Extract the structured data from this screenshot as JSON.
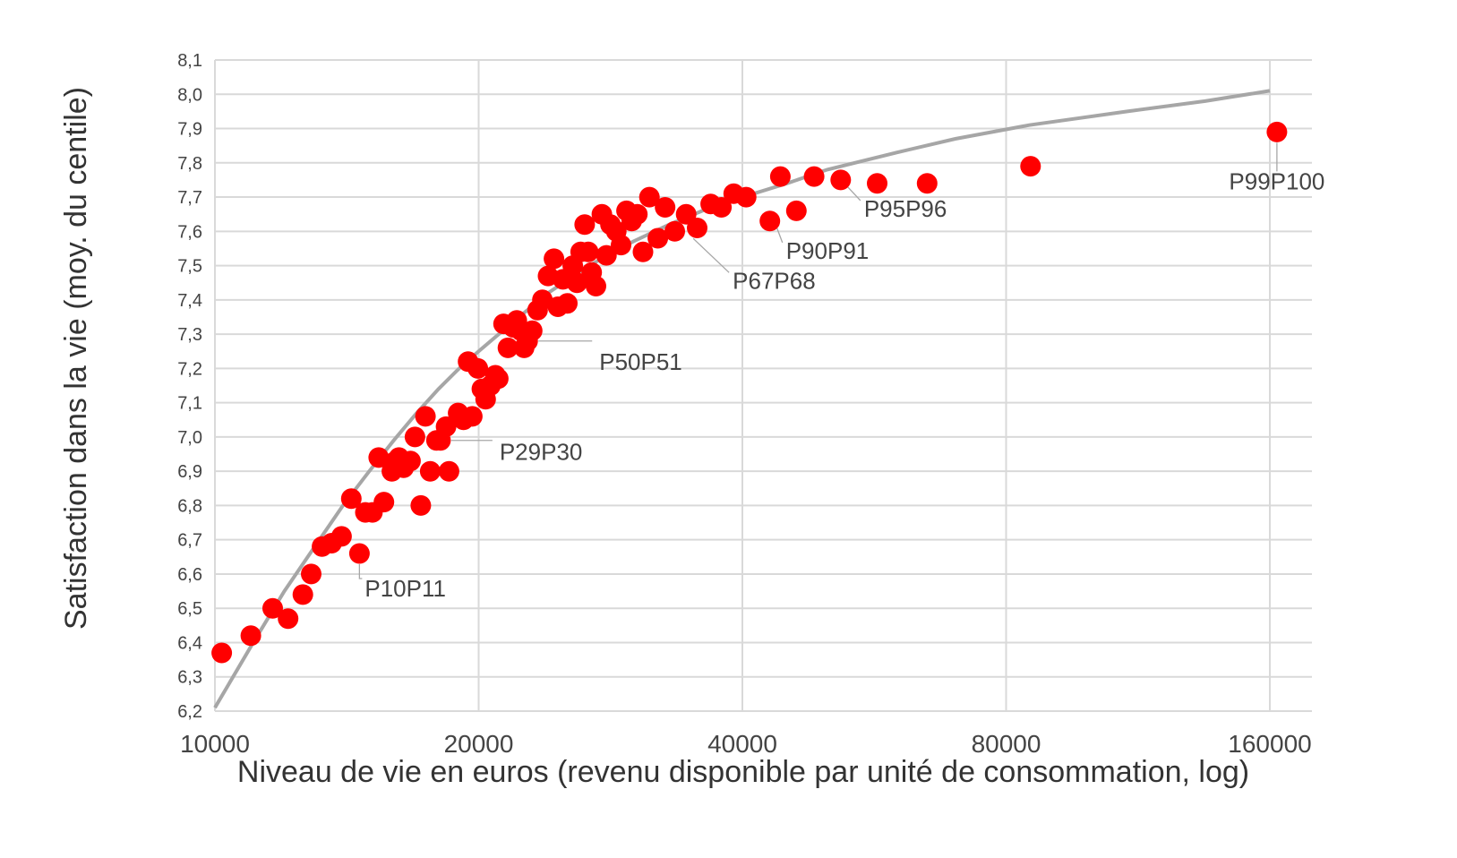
{
  "chart_data": {
    "type": "scatter",
    "xlabel": "Niveau de vie en euros (revenu disponible par unité de consommation, log)",
    "ylabel": "Satisfaction dans la vie (moy. du centile)",
    "x_scale": "log2",
    "xlim": [
      10000,
      180000
    ],
    "ylim": [
      6.2,
      8.1
    ],
    "x_ticks": [
      {
        "value": 10000,
        "label": "10000"
      },
      {
        "value": 20000,
        "label": "20000"
      },
      {
        "value": 40000,
        "label": "40000"
      },
      {
        "value": 80000,
        "label": "80000"
      },
      {
        "value": 160000,
        "label": "160000"
      }
    ],
    "y_ticks": [
      {
        "value": 6.2,
        "label": "6,2"
      },
      {
        "value": 6.3,
        "label": "6,3"
      },
      {
        "value": 6.4,
        "label": "6,4"
      },
      {
        "value": 6.5,
        "label": "6,5"
      },
      {
        "value": 6.6,
        "label": "6,6"
      },
      {
        "value": 6.7,
        "label": "6,7"
      },
      {
        "value": 6.8,
        "label": "6,8"
      },
      {
        "value": 6.9,
        "label": "6,9"
      },
      {
        "value": 7.0,
        "label": "7,0"
      },
      {
        "value": 7.1,
        "label": "7,1"
      },
      {
        "value": 7.2,
        "label": "7,2"
      },
      {
        "value": 7.3,
        "label": "7,3"
      },
      {
        "value": 7.4,
        "label": "7,4"
      },
      {
        "value": 7.5,
        "label": "7,5"
      },
      {
        "value": 7.6,
        "label": "7,6"
      },
      {
        "value": 7.7,
        "label": "7,7"
      },
      {
        "value": 7.8,
        "label": "7,8"
      },
      {
        "value": 7.9,
        "label": "7,9"
      },
      {
        "value": 8.0,
        "label": "8,0"
      },
      {
        "value": 8.1,
        "label": "8,1"
      }
    ],
    "grid": true,
    "point_color": "#ff0000",
    "fit_color": "#a6a6a6",
    "points": [
      [
        10180,
        6.37
      ],
      [
        10990,
        6.42
      ],
      [
        11640,
        6.5
      ],
      [
        12120,
        6.47
      ],
      [
        12600,
        6.54
      ],
      [
        12880,
        6.6
      ],
      [
        13250,
        6.68
      ],
      [
        13590,
        6.69
      ],
      [
        13950,
        6.71
      ],
      [
        14310,
        6.82
      ],
      [
        14620,
        6.66
      ],
      [
        14850,
        6.78
      ],
      [
        15130,
        6.78
      ],
      [
        15380,
        6.94
      ],
      [
        15590,
        6.81
      ],
      [
        15920,
        6.9
      ],
      [
        16080,
        6.93
      ],
      [
        16220,
        6.94
      ],
      [
        16420,
        6.91
      ],
      [
        16720,
        6.93
      ],
      [
        16920,
        7.0
      ],
      [
        17180,
        6.8
      ],
      [
        17390,
        7.06
      ],
      [
        17610,
        6.9
      ],
      [
        17900,
        6.99
      ],
      [
        18090,
        6.99
      ],
      [
        18360,
        7.03
      ],
      [
        18500,
        6.9
      ],
      [
        18950,
        7.07
      ],
      [
        19220,
        7.05
      ],
      [
        19450,
        7.22
      ],
      [
        19670,
        7.06
      ],
      [
        19960,
        7.2
      ],
      [
        20170,
        7.14
      ],
      [
        20370,
        7.11
      ],
      [
        20630,
        7.15
      ],
      [
        20900,
        7.18
      ],
      [
        21060,
        7.17
      ],
      [
        21350,
        7.33
      ],
      [
        21600,
        7.26
      ],
      [
        21900,
        7.32
      ],
      [
        22110,
        7.34
      ],
      [
        22350,
        7.31
      ],
      [
        22540,
        7.26
      ],
      [
        22750,
        7.28
      ],
      [
        23020,
        7.31
      ],
      [
        23350,
        7.37
      ],
      [
        23650,
        7.4
      ],
      [
        24000,
        7.47
      ],
      [
        24380,
        7.52
      ],
      [
        24630,
        7.38
      ],
      [
        24960,
        7.46
      ],
      [
        25250,
        7.39
      ],
      [
        25610,
        7.5
      ],
      [
        25900,
        7.45
      ],
      [
        26150,
        7.54
      ],
      [
        26430,
        7.62
      ],
      [
        26680,
        7.54
      ],
      [
        26920,
        7.48
      ],
      [
        27220,
        7.44
      ],
      [
        27650,
        7.65
      ],
      [
        27980,
        7.53
      ],
      [
        28280,
        7.62
      ],
      [
        28720,
        7.6
      ],
      [
        29080,
        7.56
      ],
      [
        29500,
        7.66
      ],
      [
        29900,
        7.63
      ],
      [
        30350,
        7.65
      ],
      [
        30800,
        7.54
      ],
      [
        31330,
        7.7
      ],
      [
        32030,
        7.58
      ],
      [
        32650,
        7.67
      ],
      [
        33490,
        7.6
      ],
      [
        34500,
        7.65
      ],
      [
        35520,
        7.61
      ],
      [
        36800,
        7.68
      ],
      [
        37860,
        7.67
      ],
      [
        39100,
        7.71
      ],
      [
        40400,
        7.7
      ],
      [
        43000,
        7.63
      ],
      [
        44200,
        7.76
      ],
      [
        46100,
        7.66
      ],
      [
        48300,
        7.76
      ],
      [
        51800,
        7.75
      ],
      [
        57000,
        7.74
      ],
      [
        65000,
        7.74
      ],
      [
        85300,
        7.79
      ],
      [
        163000,
        7.89
      ]
    ],
    "fit_curve": [
      [
        10000,
        6.21
      ],
      [
        11000,
        6.39
      ],
      [
        12000,
        6.55
      ],
      [
        13000,
        6.68
      ],
      [
        14000,
        6.8
      ],
      [
        15000,
        6.9
      ],
      [
        16000,
        6.99
      ],
      [
        17000,
        7.07
      ],
      [
        18000,
        7.14
      ],
      [
        19000,
        7.2
      ],
      [
        20000,
        7.25
      ],
      [
        22000,
        7.34
      ],
      [
        24000,
        7.42
      ],
      [
        26000,
        7.48
      ],
      [
        28000,
        7.53
      ],
      [
        30000,
        7.57
      ],
      [
        33000,
        7.62
      ],
      [
        36000,
        7.66
      ],
      [
        40000,
        7.7
      ],
      [
        45000,
        7.74
      ],
      [
        50000,
        7.78
      ],
      [
        60000,
        7.83
      ],
      [
        70000,
        7.87
      ],
      [
        85000,
        7.91
      ],
      [
        110000,
        7.95
      ],
      [
        135000,
        7.98
      ],
      [
        160000,
        8.01
      ]
    ],
    "annotations": [
      {
        "label": "P10P11",
        "x": 14620,
        "y": 6.66
      },
      {
        "label": "P29P30",
        "x": 18090,
        "y": 6.99
      },
      {
        "label": "P50P51",
        "x": 22750,
        "y": 7.28
      },
      {
        "label": "P67P68",
        "x": 34500,
        "y": 7.6
      },
      {
        "label": "P90P91",
        "x": 43000,
        "y": 7.63
      },
      {
        "label": "P95P96",
        "x": 51800,
        "y": 7.75
      },
      {
        "label": "P99P100",
        "x": 163000,
        "y": 7.89
      }
    ]
  }
}
